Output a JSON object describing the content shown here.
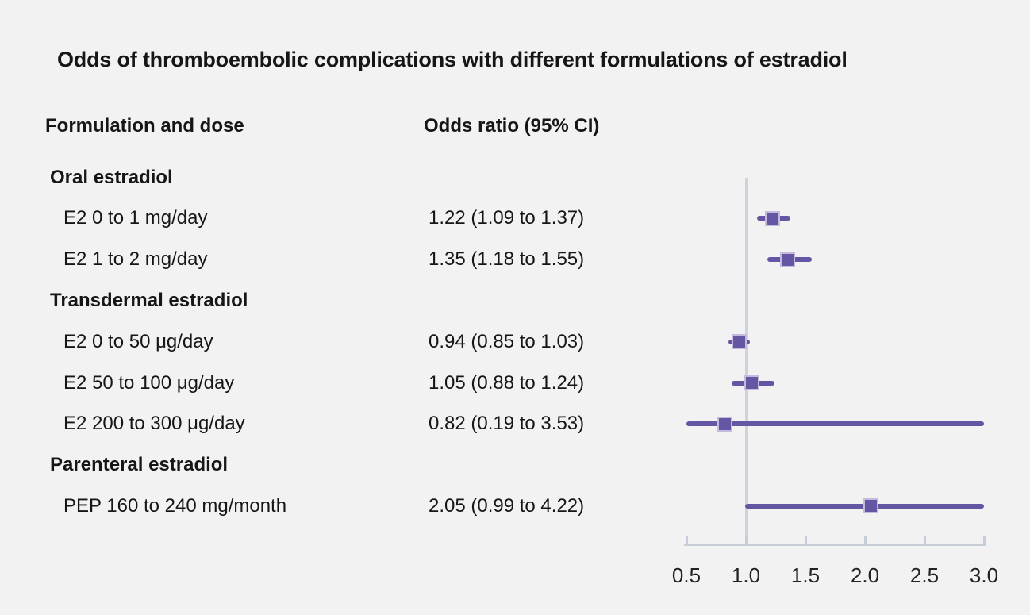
{
  "title": "Odds of thromboembolic complications with different formulations of estradiol",
  "column_headers": {
    "formulation": "Formulation and dose",
    "odds_ratio": "Odds ratio (95% CI)"
  },
  "colors": {
    "background": "#f2f2f2",
    "marker_fill": "#6456a3",
    "marker_border": "#c7b9dd",
    "axis": "#c7cdd7",
    "reference_line": "#ced4dd",
    "text": "#161616"
  },
  "chart_data": {
    "type": "forest",
    "title": "Odds of thromboembolic complications with different formulations of estradiol",
    "xlabel": "",
    "ylabel": "",
    "xlim": [
      0.5,
      3.0
    ],
    "x_ticks": [
      0.5,
      1.0,
      1.5,
      2.0,
      2.5,
      3.0
    ],
    "x_tick_labels": [
      "0.5",
      "1.0",
      "1.5",
      "2.0",
      "2.5",
      "3.0"
    ],
    "reference_value": 1.0,
    "grid": false,
    "legend": false,
    "rows": [
      {
        "label": "Oral estradiol",
        "group": true
      },
      {
        "label": "E2 0 to 1 mg/day",
        "group": false,
        "or_text": "1.22 (1.09 to 1.37)",
        "estimate": 1.22,
        "ci_low": 1.09,
        "ci_high": 1.37
      },
      {
        "label": "E2 1 to 2 mg/day",
        "group": false,
        "or_text": "1.35 (1.18 to 1.55)",
        "estimate": 1.35,
        "ci_low": 1.18,
        "ci_high": 1.55
      },
      {
        "label": "Transdermal estradiol",
        "group": true
      },
      {
        "label": "E2 0 to 50 μg/day",
        "group": false,
        "or_text": "0.94 (0.85 to 1.03)",
        "estimate": 0.94,
        "ci_low": 0.85,
        "ci_high": 1.03
      },
      {
        "label": "E2 50 to 100 μg/day",
        "group": false,
        "or_text": "1.05 (0.88 to 1.24)",
        "estimate": 1.05,
        "ci_low": 0.88,
        "ci_high": 1.24
      },
      {
        "label": "E2 200 to 300 μg/day",
        "group": false,
        "or_text": "0.82 (0.19 to 3.53)",
        "estimate": 0.82,
        "ci_low": 0.19,
        "ci_high": 3.53
      },
      {
        "label": "Parenteral estradiol",
        "group": true
      },
      {
        "label": "PEP 160 to 240 mg/month",
        "group": false,
        "or_text": "2.05 (0.99 to 4.22)",
        "estimate": 2.05,
        "ci_low": 0.99,
        "ci_high": 4.22
      }
    ]
  }
}
